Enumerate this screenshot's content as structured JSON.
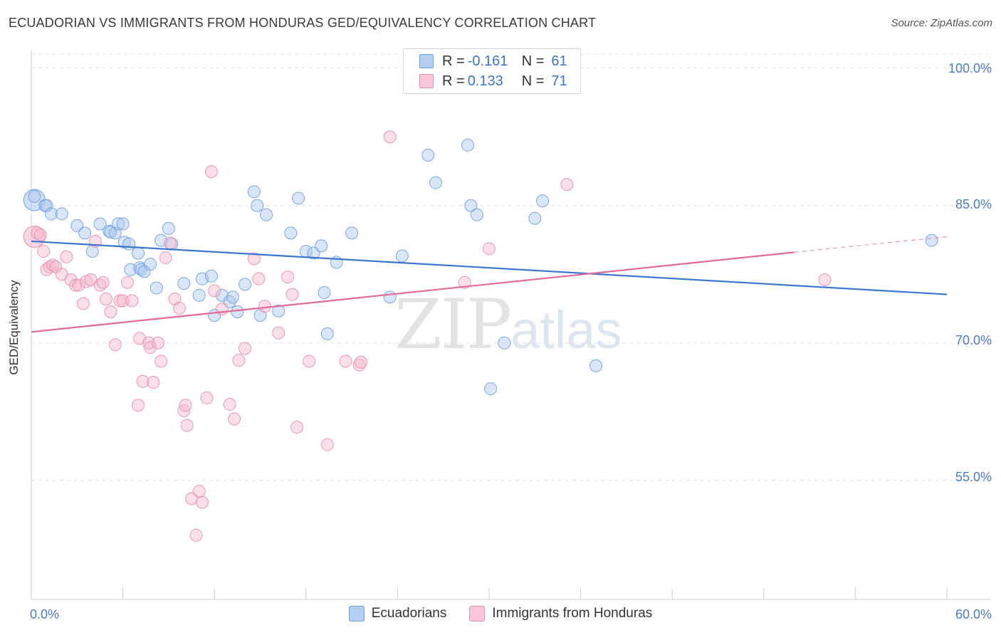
{
  "header": {
    "title": "ECUADORIAN VS IMMIGRANTS FROM HONDURAS GED/EQUIVALENCY CORRELATION CHART",
    "source": "Source: ZipAtlas.com"
  },
  "watermark": {
    "zip": "ZIP",
    "atlas": "atlas"
  },
  "legend": {
    "rows": [
      {
        "r_label": "R =",
        "r_value": "-0.161",
        "n_label": "N =",
        "n_value": "61"
      },
      {
        "r_label": "R =",
        "r_value": "0.133",
        "n_label": "N =",
        "n_value": "71"
      }
    ]
  },
  "bottom_legend": {
    "items": [
      "Ecuadorians",
      "Immigrants from Honduras"
    ]
  },
  "axes": {
    "ylabel": "GED/Equivalency",
    "yticks": [
      "100.0%",
      "85.0%",
      "70.0%",
      "55.0%"
    ],
    "xticks": [
      "0.0%",
      "60.0%"
    ]
  },
  "colors": {
    "blue": "#3a78cf",
    "blue_fill": "#aac7ef",
    "pink": "#e2699a",
    "pink_fill": "#f5b7cd",
    "tick_text": "#4a7cc7",
    "grid": "#e3e3e3"
  },
  "chart_data": {
    "type": "scatter",
    "title": "ECUADORIAN VS IMMIGRANTS FROM HONDURAS GED/EQUIVALENCY CORRELATION CHART",
    "xlabel": "",
    "ylabel": "GED/Equivalency",
    "xlim": [
      0,
      60
    ],
    "ylim": [
      42.0,
      102.0
    ],
    "y_gridlines": [
      100,
      85,
      70,
      55
    ],
    "series": [
      {
        "name": "Ecuadorians",
        "color": "#3a78cf",
        "trend": {
          "x": [
            0,
            60
          ],
          "y": [
            81.1,
            75.3
          ]
        },
        "points": [
          [
            0.2,
            86.0
          ],
          [
            0.9,
            85.0
          ],
          [
            1.0,
            85.0
          ],
          [
            1.3,
            84.1
          ],
          [
            2.0,
            84.1
          ],
          [
            3.0,
            82.8
          ],
          [
            3.5,
            82.0
          ],
          [
            4.0,
            80.0
          ],
          [
            4.5,
            83.0
          ],
          [
            5.1,
            82.2
          ],
          [
            5.2,
            82.1
          ],
          [
            5.5,
            82.0
          ],
          [
            5.7,
            83.0
          ],
          [
            6.0,
            83.0
          ],
          [
            6.1,
            81.0
          ],
          [
            6.4,
            80.8
          ],
          [
            6.5,
            78.0
          ],
          [
            7.0,
            79.8
          ],
          [
            7.1,
            78.2
          ],
          [
            7.2,
            78.0
          ],
          [
            7.4,
            77.8
          ],
          [
            7.8,
            78.6
          ],
          [
            8.2,
            76.0
          ],
          [
            8.5,
            81.2
          ],
          [
            9.0,
            82.5
          ],
          [
            9.2,
            80.8
          ],
          [
            10.0,
            76.5
          ],
          [
            11.0,
            75.2
          ],
          [
            11.2,
            77.0
          ],
          [
            11.8,
            77.3
          ],
          [
            12.0,
            73.0
          ],
          [
            12.5,
            75.2
          ],
          [
            13.0,
            74.5
          ],
          [
            13.2,
            75.0
          ],
          [
            13.5,
            73.4
          ],
          [
            14.0,
            76.4
          ],
          [
            14.6,
            86.5
          ],
          [
            14.8,
            85.0
          ],
          [
            15.0,
            73.0
          ],
          [
            15.4,
            84.0
          ],
          [
            16.2,
            73.5
          ],
          [
            17.0,
            82.0
          ],
          [
            17.5,
            85.8
          ],
          [
            18.0,
            80.0
          ],
          [
            18.5,
            79.8
          ],
          [
            19.0,
            80.6
          ],
          [
            19.2,
            75.5
          ],
          [
            19.4,
            71.0
          ],
          [
            20.0,
            78.8
          ],
          [
            21.0,
            82.0
          ],
          [
            23.5,
            75.0
          ],
          [
            24.3,
            79.5
          ],
          [
            26.0,
            90.5
          ],
          [
            26.5,
            87.5
          ],
          [
            28.6,
            91.6
          ],
          [
            28.8,
            85.0
          ],
          [
            29.2,
            84.0
          ],
          [
            30.1,
            65.0
          ],
          [
            31.0,
            70.0
          ],
          [
            33.0,
            83.6
          ],
          [
            33.5,
            85.5
          ],
          [
            37.0,
            67.5
          ],
          [
            59.0,
            81.2
          ]
        ],
        "big_point": [
          0.2,
          85.6
        ]
      },
      {
        "name": "Immigrants from Honduras",
        "color": "#e2699a",
        "trend": {
          "x": [
            0,
            50
          ],
          "y": [
            71.2,
            79.9
          ],
          "dashed_to": {
            "x": 60,
            "y": 81.6
          }
        },
        "points": [
          [
            0.4,
            82.0
          ],
          [
            0.6,
            81.8
          ],
          [
            0.8,
            80.0
          ],
          [
            1.0,
            78.0
          ],
          [
            1.2,
            78.3
          ],
          [
            1.4,
            78.5
          ],
          [
            1.6,
            78.3
          ],
          [
            2.0,
            77.5
          ],
          [
            2.3,
            79.4
          ],
          [
            2.6,
            76.9
          ],
          [
            2.9,
            76.3
          ],
          [
            3.1,
            76.3
          ],
          [
            3.4,
            74.3
          ],
          [
            3.6,
            76.7
          ],
          [
            3.9,
            76.9
          ],
          [
            4.2,
            81.1
          ],
          [
            4.5,
            76.3
          ],
          [
            4.7,
            76.6
          ],
          [
            4.9,
            74.8
          ],
          [
            5.2,
            73.4
          ],
          [
            5.5,
            69.8
          ],
          [
            5.8,
            74.6
          ],
          [
            6.0,
            74.6
          ],
          [
            6.3,
            76.6
          ],
          [
            6.6,
            74.6
          ],
          [
            7.0,
            63.2
          ],
          [
            7.1,
            70.5
          ],
          [
            7.3,
            65.8
          ],
          [
            7.7,
            70.0
          ],
          [
            7.8,
            69.5
          ],
          [
            8.0,
            65.7
          ],
          [
            8.3,
            70.0
          ],
          [
            8.5,
            68.0
          ],
          [
            8.8,
            79.3
          ],
          [
            9.1,
            80.9
          ],
          [
            9.4,
            74.8
          ],
          [
            9.7,
            73.8
          ],
          [
            10.0,
            62.6
          ],
          [
            10.1,
            63.2
          ],
          [
            10.2,
            61.0
          ],
          [
            10.5,
            53.0
          ],
          [
            10.8,
            49.0
          ],
          [
            11.0,
            53.8
          ],
          [
            11.2,
            52.6
          ],
          [
            11.5,
            64.0
          ],
          [
            11.8,
            88.7
          ],
          [
            12.0,
            75.7
          ],
          [
            12.5,
            73.7
          ],
          [
            13.0,
            63.3
          ],
          [
            13.3,
            61.7
          ],
          [
            13.6,
            68.1
          ],
          [
            14.0,
            69.4
          ],
          [
            14.6,
            79.2
          ],
          [
            14.9,
            77.0
          ],
          [
            15.3,
            74.0
          ],
          [
            16.2,
            71.1
          ],
          [
            16.8,
            77.2
          ],
          [
            17.1,
            75.3
          ],
          [
            17.4,
            60.8
          ],
          [
            18.2,
            68.0
          ],
          [
            19.4,
            58.9
          ],
          [
            20.6,
            68.0
          ],
          [
            21.5,
            67.6
          ],
          [
            21.6,
            67.9
          ],
          [
            23.5,
            92.5
          ],
          [
            26.0,
            98.0
          ],
          [
            28.4,
            76.6
          ],
          [
            30.0,
            80.3
          ],
          [
            30.5,
            101.3
          ],
          [
            35.1,
            87.3
          ],
          [
            52.0,
            76.9
          ]
        ],
        "big_point": [
          0.2,
          81.6
        ]
      }
    ]
  }
}
